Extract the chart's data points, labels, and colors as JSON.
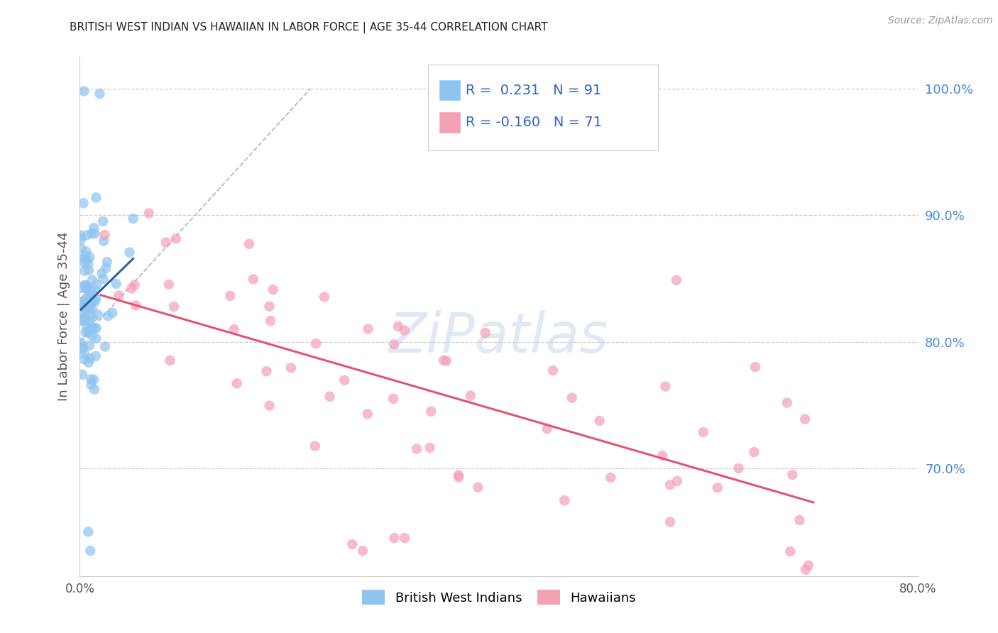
{
  "title": "BRITISH WEST INDIAN VS HAWAIIAN IN LABOR FORCE | AGE 35-44 CORRELATION CHART",
  "source": "Source: ZipAtlas.com",
  "ylabel": "In Labor Force | Age 35-44",
  "xlim": [
    0.0,
    0.8
  ],
  "ylim": [
    0.615,
    1.025
  ],
  "right_yticks": [
    1.0,
    0.9,
    0.8,
    0.7
  ],
  "right_yticklabels": [
    "100.0%",
    "90.0%",
    "80.0%",
    "70.0%"
  ],
  "r_bwi": 0.231,
  "n_bwi": 91,
  "r_haw": -0.16,
  "n_haw": 71,
  "color_bwi": "#8ec4ef",
  "color_haw": "#f4a0b5",
  "color_bwi_line": "#2a5fa8",
  "color_haw_line": "#e05575",
  "color_diagonal": "#aaaacc",
  "color_title": "#222222",
  "color_right_axis": "#4488dd",
  "color_grid": "#cccccc",
  "watermark": "ZiPatlas",
  "legend_r_color": "#3366bb",
  "legend_n_color": "#3366bb"
}
